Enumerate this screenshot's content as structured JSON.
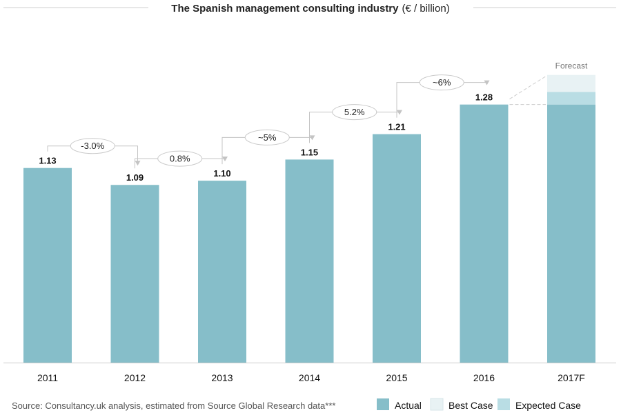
{
  "chart_data": {
    "type": "bar",
    "title": "The Spanish management consulting industry",
    "title_unit": "(€ / billion)",
    "categories": [
      "2011",
      "2012",
      "2013",
      "2014",
      "2015",
      "2016",
      "2017F"
    ],
    "values": [
      1.13,
      1.09,
      1.1,
      1.15,
      1.21,
      1.28,
      1.28
    ],
    "value_labels": [
      "1.13",
      "1.09",
      "1.10",
      "1.15",
      "1.21",
      "1.28",
      ""
    ],
    "forecast": {
      "label": "Forecast",
      "category": "2017F",
      "expected_case_top": 1.31,
      "best_case_top": 1.35
    },
    "growth_annotations": [
      {
        "from": "2011",
        "to": "2012",
        "label": "-3.0%"
      },
      {
        "from": "2012",
        "to": "2013",
        "label": "0.8%"
      },
      {
        "from": "2013",
        "to": "2014",
        "label": "~5%"
      },
      {
        "from": "2014",
        "to": "2015",
        "label": "5.2%"
      },
      {
        "from": "2015",
        "to": "2016",
        "label": "~6%"
      }
    ],
    "ylim": [
      0.67,
      1.4
    ],
    "legend": [
      {
        "name": "Actual",
        "color": "#86bec9"
      },
      {
        "name": "Best Case",
        "color": "#e8f2f4"
      },
      {
        "name": "Expected Case",
        "color": "#b9dde4"
      }
    ],
    "colors": {
      "actual": "#86bec9",
      "best_case": "#e8f2f4",
      "expected_case": "#b9dde4",
      "axis": "#cccccc",
      "connector": "#c4c4c4"
    }
  },
  "source": "Source: Consultancy.uk analysis, estimated from Source Global Research data***"
}
